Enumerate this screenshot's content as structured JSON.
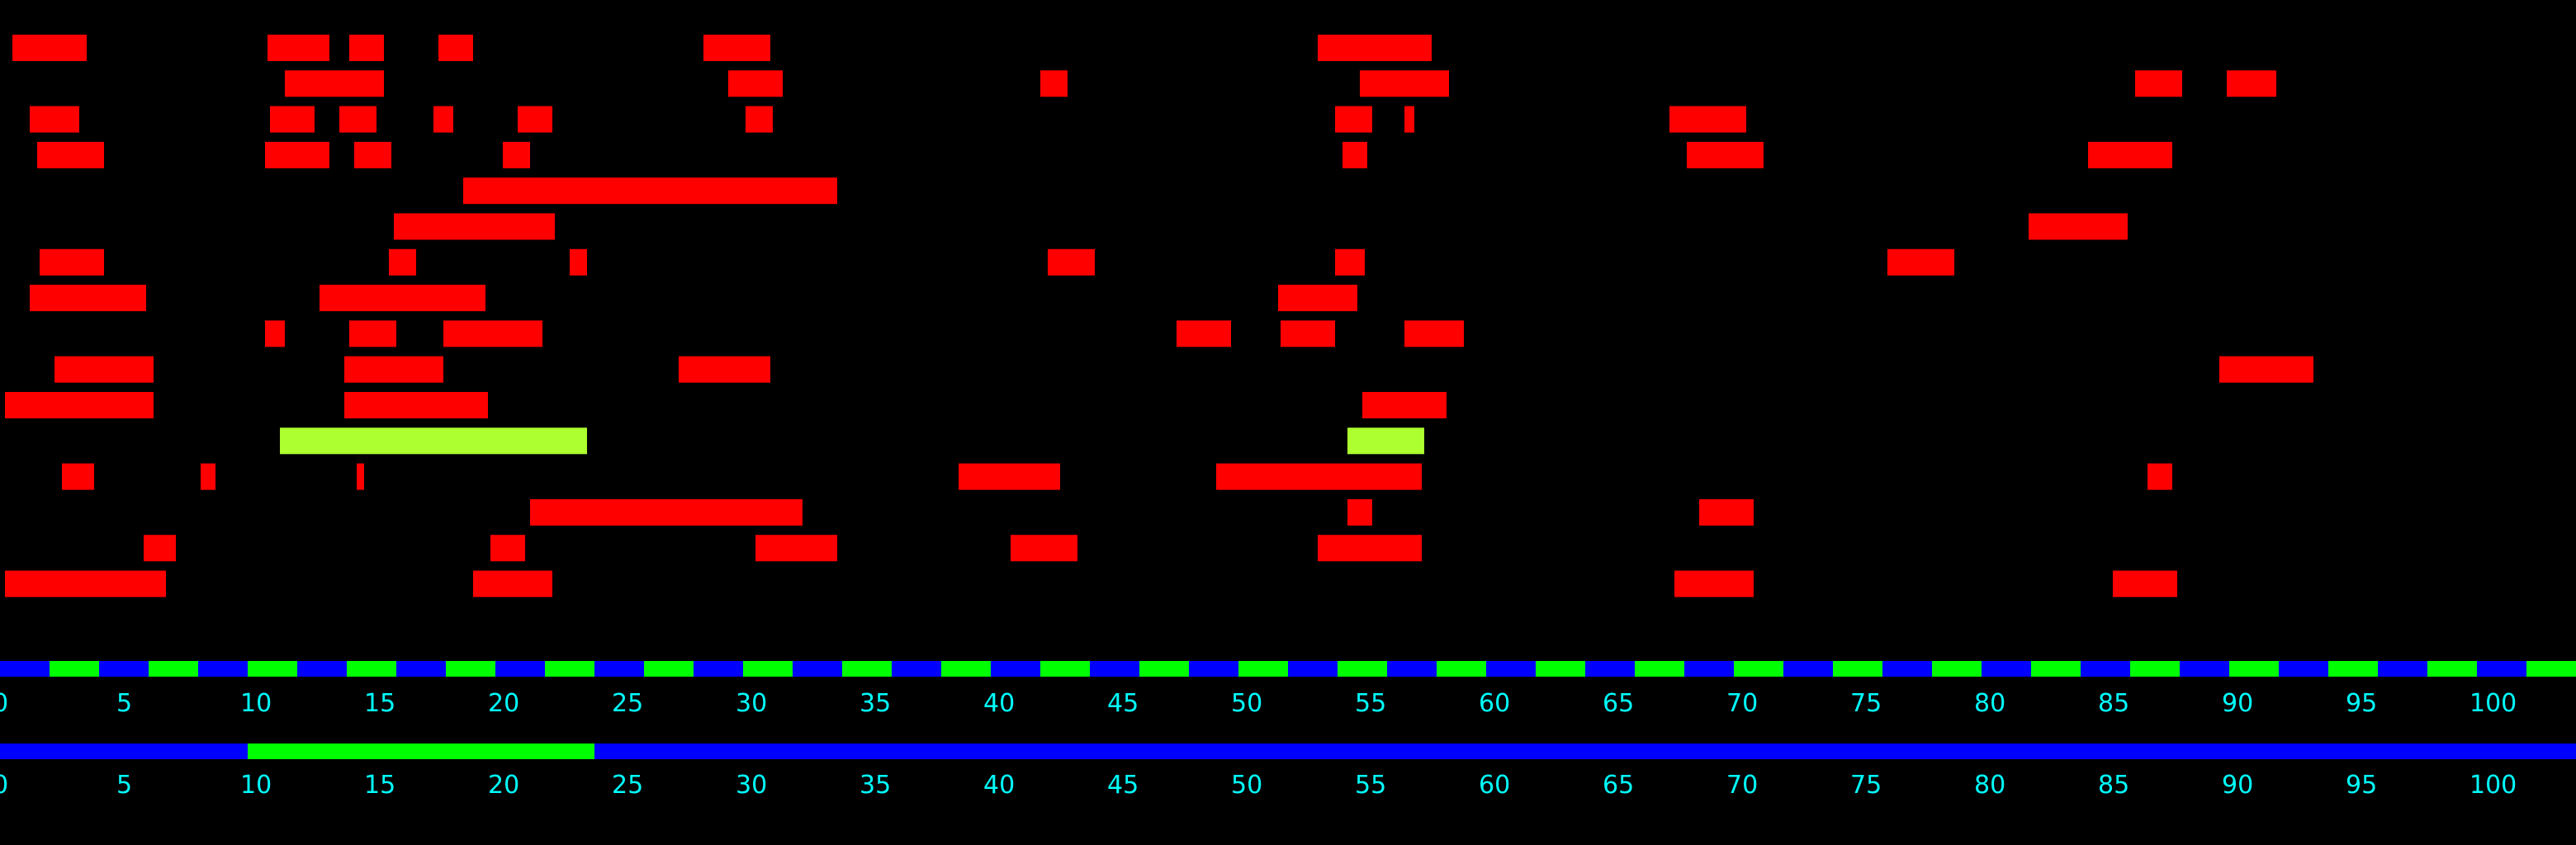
{
  "chart_data": {
    "type": "bar",
    "subtype": "horizontal-range-bars",
    "title": "",
    "xlabel": "",
    "ylabel": "",
    "xlim": [
      0,
      104
    ],
    "grid": false,
    "legend": "none",
    "colors": {
      "background": "#000000",
      "bar": "#ff0000",
      "highlight": "#adff2f",
      "track_blue": "#0000ff",
      "track_green": "#00ff00",
      "tick_text": "#00ffff"
    },
    "rows": [
      {
        "segments": [
          [
            0.5,
            3.5
          ],
          [
            10.8,
            13.3
          ],
          [
            14.1,
            15.5
          ],
          [
            17.7,
            19.1
          ],
          [
            28.4,
            31.1
          ],
          [
            53.2,
            57.8
          ]
        ]
      },
      {
        "segments": [
          [
            11.5,
            15.5
          ],
          [
            29.4,
            31.6
          ],
          [
            42,
            43.1
          ],
          [
            54.9,
            58.5
          ],
          [
            86.2,
            88.1
          ],
          [
            89.9,
            91.9
          ]
        ]
      },
      {
        "segments": [
          [
            1.2,
            3.2
          ],
          [
            10.9,
            12.7
          ],
          [
            13.7,
            15.2
          ],
          [
            17.5,
            18.3
          ],
          [
            20.9,
            22.3
          ],
          [
            30.1,
            31.2
          ],
          [
            53.9,
            55.4
          ],
          [
            56.7,
            57.1
          ],
          [
            67.4,
            70.5
          ]
        ]
      },
      {
        "segments": [
          [
            1.5,
            4.2
          ],
          [
            10.7,
            13.3
          ],
          [
            14.3,
            15.8
          ],
          [
            20.3,
            21.4
          ],
          [
            54.2,
            55.2
          ],
          [
            68.1,
            71.2
          ],
          [
            84.3,
            87.7
          ]
        ]
      },
      {
        "segments": [
          [
            18.7,
            33.8
          ]
        ]
      },
      {
        "segments": [
          [
            15.9,
            22.4
          ],
          [
            81.9,
            85.9
          ]
        ]
      },
      {
        "segments": [
          [
            1.6,
            4.2
          ],
          [
            15.7,
            16.8
          ],
          [
            23,
            23.7
          ],
          [
            42.3,
            44.2
          ],
          [
            53.9,
            55.1
          ],
          [
            76.2,
            78.9
          ]
        ]
      },
      {
        "segments": [
          [
            1.2,
            5.9
          ],
          [
            12.9,
            19.6
          ],
          [
            51.6,
            54.8
          ]
        ]
      },
      {
        "segments": [
          [
            10.7,
            11.5
          ],
          [
            14.1,
            16
          ],
          [
            17.9,
            21.9
          ],
          [
            47.5,
            49.7
          ],
          [
            51.7,
            53.9
          ],
          [
            56.7,
            59.1
          ]
        ]
      },
      {
        "segments": [
          [
            2.2,
            6.2
          ],
          [
            13.9,
            17.9
          ],
          [
            27.4,
            31.1
          ],
          [
            89.6,
            93.4
          ]
        ]
      },
      {
        "segments": [
          [
            0.2,
            6.2
          ],
          [
            13.9,
            19.7
          ],
          [
            55,
            58.4
          ]
        ]
      },
      {
        "highlight": true,
        "segments": [
          [
            11.3,
            23.7
          ],
          [
            54.4,
            57.5
          ]
        ]
      },
      {
        "segments": [
          [
            2.5,
            3.8
          ],
          [
            8.1,
            8.7
          ],
          [
            14.4,
            14.7
          ],
          [
            38.7,
            42.8
          ],
          [
            49.1,
            57.4
          ],
          [
            86.7,
            87.7
          ]
        ]
      },
      {
        "segments": [
          [
            21.4,
            32.4
          ],
          [
            54.4,
            55.4
          ],
          [
            68.6,
            70.8
          ]
        ]
      },
      {
        "segments": [
          [
            5.8,
            7.1
          ],
          [
            19.8,
            21.2
          ],
          [
            30.5,
            33.8
          ],
          [
            40.8,
            43.5
          ],
          [
            53.2,
            57.4
          ]
        ]
      },
      {
        "segments": [
          [
            0.2,
            6.7
          ],
          [
            19.1,
            22.3
          ],
          [
            67.6,
            70.8
          ],
          [
            85.3,
            87.9
          ]
        ]
      }
    ],
    "tracks": [
      {
        "type": "alternating",
        "step": 2,
        "colors": [
          "#0000ff",
          "#00ff00"
        ]
      },
      {
        "type": "range",
        "base_color": "#0000ff",
        "highlight_color": "#00ff00",
        "highlight": [
          10,
          24
        ]
      }
    ],
    "xticks": [
      0,
      5,
      10,
      15,
      20,
      25,
      30,
      35,
      40,
      45,
      50,
      55,
      60,
      65,
      70,
      75,
      80,
      85,
      90,
      95,
      100
    ],
    "xtick_labels": [
      "0",
      "5",
      "10",
      "15",
      "20",
      "25",
      "30",
      "35",
      "40",
      "45",
      "50",
      "55",
      "60",
      "65",
      "70",
      "75",
      "80",
      "85",
      "90",
      "95",
      "100"
    ]
  }
}
